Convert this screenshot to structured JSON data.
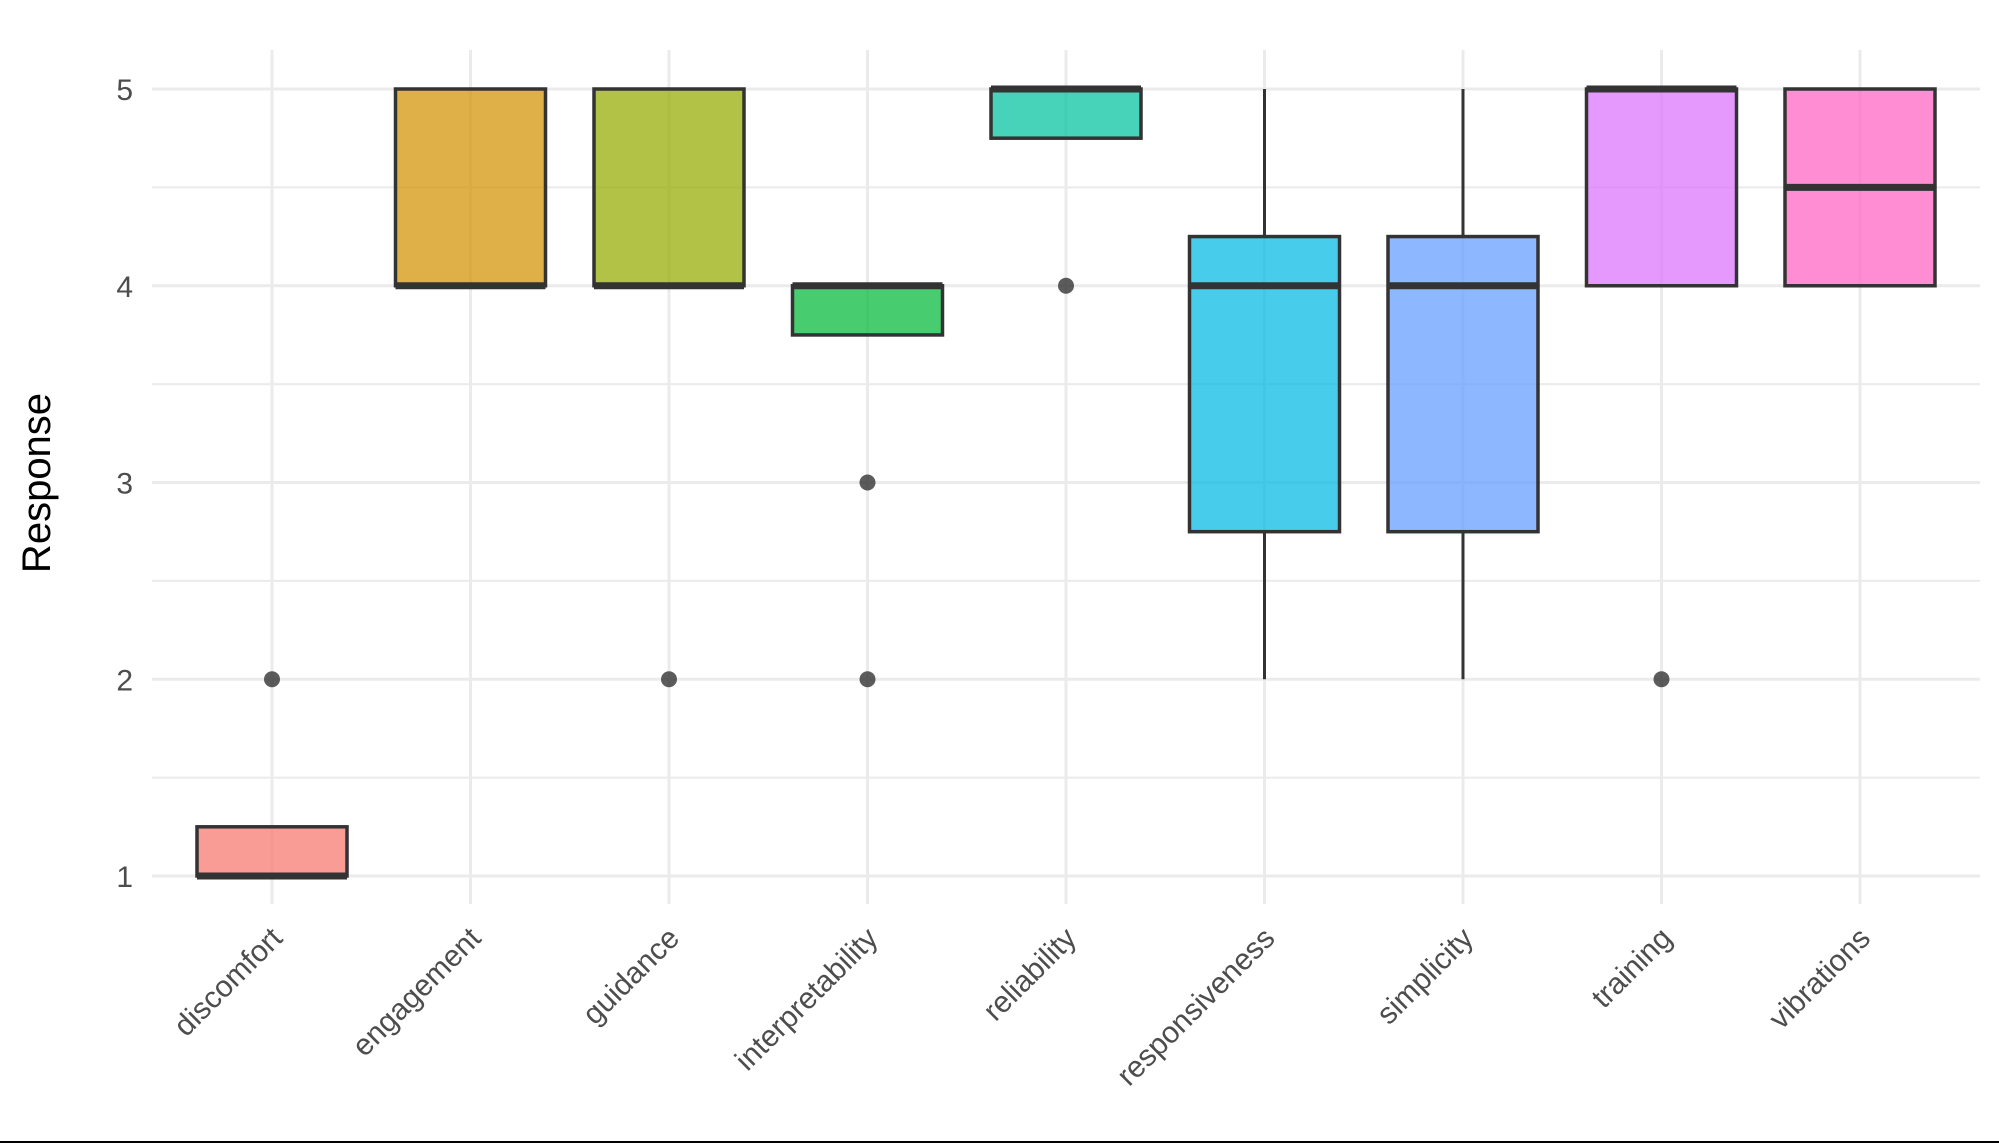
{
  "chart_data": {
    "type": "boxplot",
    "title": "",
    "xlabel": "",
    "ylabel": "Response",
    "ylim": [
      0.8,
      5.2
    ],
    "yticks": [
      1,
      2,
      3,
      4,
      5
    ],
    "grid": true,
    "categories": [
      "discomfort",
      "engagement",
      "guidance",
      "interpretability",
      "reliability",
      "responsiveness",
      "simplicity",
      "training",
      "vibrations"
    ],
    "colors": [
      "#F8766D",
      "#D39200",
      "#93AA00",
      "#00BA38",
      "#00C19F",
      "#00B9E3",
      "#619CFF",
      "#DB72FB",
      "#FF61C3"
    ],
    "boxes": [
      {
        "category": "discomfort",
        "q1": 1,
        "median": 1,
        "q3": 1.25,
        "whisker_low": 1,
        "whisker_high": 1.25,
        "outliers": [
          2
        ]
      },
      {
        "category": "engagement",
        "q1": 4,
        "median": 4,
        "q3": 5,
        "whisker_low": 4,
        "whisker_high": 5,
        "outliers": []
      },
      {
        "category": "guidance",
        "q1": 4,
        "median": 4,
        "q3": 5,
        "whisker_low": 4,
        "whisker_high": 5,
        "outliers": [
          2
        ]
      },
      {
        "category": "interpretability",
        "q1": 3.75,
        "median": 4,
        "q3": 4,
        "whisker_low": 3.75,
        "whisker_high": 4,
        "outliers": [
          3,
          2
        ]
      },
      {
        "category": "reliability",
        "q1": 4.75,
        "median": 5,
        "q3": 5,
        "whisker_low": 4.75,
        "whisker_high": 5,
        "outliers": [
          4
        ]
      },
      {
        "category": "responsiveness",
        "q1": 2.75,
        "median": 4,
        "q3": 4.25,
        "whisker_low": 2,
        "whisker_high": 5,
        "outliers": []
      },
      {
        "category": "simplicity",
        "q1": 2.75,
        "median": 4,
        "q3": 4.25,
        "whisker_low": 2,
        "whisker_high": 5,
        "outliers": []
      },
      {
        "category": "training",
        "q1": 4,
        "median": 5,
        "q3": 5,
        "whisker_low": 4,
        "whisker_high": 5,
        "outliers": [
          2
        ]
      },
      {
        "category": "vibrations",
        "q1": 4,
        "median": 4.5,
        "q3": 5,
        "whisker_low": 4,
        "whisker_high": 5,
        "outliers": []
      }
    ]
  }
}
